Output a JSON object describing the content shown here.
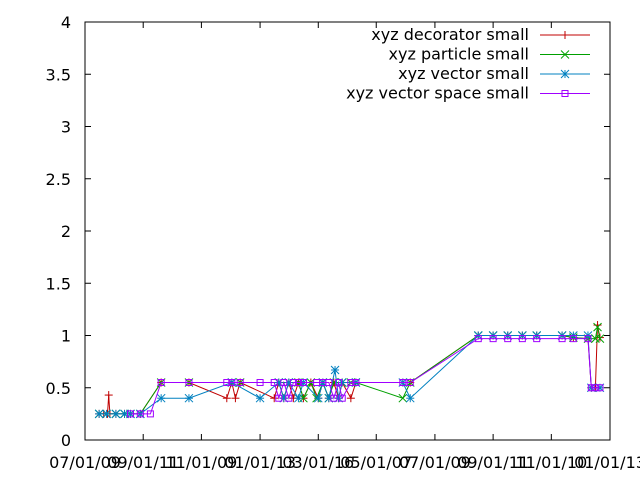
{
  "chart_data": {
    "type": "line",
    "title": "",
    "xlabel": "",
    "ylabel": "",
    "ylim": [
      0,
      4
    ],
    "xlim": [
      "2007-01-01",
      "2013-01-01"
    ],
    "grid": false,
    "legend_position": "top-right",
    "y_ticks": [
      {
        "value": 0,
        "label": "0"
      },
      {
        "value": 0.5,
        "label": "0.5"
      },
      {
        "value": 1,
        "label": "1"
      },
      {
        "value": 1.5,
        "label": "1.5"
      },
      {
        "value": 2,
        "label": "2"
      },
      {
        "value": 2.5,
        "label": "2.5"
      },
      {
        "value": 3,
        "label": "3"
      },
      {
        "value": 3.5,
        "label": "3.5"
      },
      {
        "value": 4,
        "label": "4"
      }
    ],
    "x_ticks": [
      {
        "value": "2007-01-01",
        "label": "07/01/09"
      },
      {
        "value": "2007-09-01",
        "label": "09/01/11"
      },
      {
        "value": "2008-05-01",
        "label": "11/01/09"
      },
      {
        "value": "2009-01-01",
        "label": "01/01/13"
      },
      {
        "value": "2009-09-01",
        "label": "03/01/16"
      },
      {
        "value": "2010-05-01",
        "label": "05/01/07"
      },
      {
        "value": "2011-01-01",
        "label": "07/01/09"
      },
      {
        "value": "2011-09-01",
        "label": "09/01/11"
      },
      {
        "value": "2012-05-01",
        "label": "11/01/10"
      },
      {
        "value": "2013-01-01",
        "label": "01/01/13"
      }
    ],
    "series": [
      {
        "name": "xyz decorator small",
        "color": "#c00000",
        "marker": "plus",
        "points": [
          {
            "x": "2007-03-01",
            "y": 0.25
          },
          {
            "x": "2007-03-20",
            "y": 0.25
          },
          {
            "x": "2007-04-05",
            "y": 0.25
          },
          {
            "x": "2007-04-10",
            "y": 0.43
          },
          {
            "x": "2007-04-15",
            "y": 0.25
          },
          {
            "x": "2007-05-10",
            "y": 0.25
          },
          {
            "x": "2007-06-15",
            "y": 0.25
          },
          {
            "x": "2007-07-10",
            "y": 0.25
          },
          {
            "x": "2007-08-20",
            "y": 0.25
          },
          {
            "x": "2007-11-15",
            "y": 0.55
          },
          {
            "x": "2008-03-10",
            "y": 0.55
          },
          {
            "x": "2008-08-15",
            "y": 0.4
          },
          {
            "x": "2008-09-05",
            "y": 0.55
          },
          {
            "x": "2008-09-20",
            "y": 0.4
          },
          {
            "x": "2008-10-10",
            "y": 0.55
          },
          {
            "x": "2009-03-01",
            "y": 0.4
          },
          {
            "x": "2009-03-20",
            "y": 0.55
          },
          {
            "x": "2009-04-10",
            "y": 0.4
          },
          {
            "x": "2009-05-01",
            "y": 0.55
          },
          {
            "x": "2009-05-20",
            "y": 0.4
          },
          {
            "x": "2009-06-10",
            "y": 0.55
          },
          {
            "x": "2009-07-01",
            "y": 0.4
          },
          {
            "x": "2009-08-01",
            "y": 0.55
          },
          {
            "x": "2009-09-01",
            "y": 0.4
          },
          {
            "x": "2009-09-20",
            "y": 0.55
          },
          {
            "x": "2009-10-15",
            "y": 0.4
          },
          {
            "x": "2009-11-05",
            "y": 0.55
          },
          {
            "x": "2009-11-25",
            "y": 0.4
          },
          {
            "x": "2009-12-10",
            "y": 0.55
          },
          {
            "x": "2010-01-15",
            "y": 0.4
          },
          {
            "x": "2010-02-05",
            "y": 0.55
          },
          {
            "x": "2010-08-20",
            "y": 0.55
          },
          {
            "x": "2010-09-20",
            "y": 0.55
          },
          {
            "x": "2011-07-01",
            "y": 1.0
          },
          {
            "x": "2011-09-01",
            "y": 1.0
          },
          {
            "x": "2011-11-01",
            "y": 1.0
          },
          {
            "x": "2012-01-01",
            "y": 1.0
          },
          {
            "x": "2012-03-01",
            "y": 1.0
          },
          {
            "x": "2012-06-15",
            "y": 1.0
          },
          {
            "x": "2012-08-01",
            "y": 0.98
          },
          {
            "x": "2012-10-01",
            "y": 0.97
          },
          {
            "x": "2012-10-15",
            "y": 0.5
          },
          {
            "x": "2012-11-01",
            "y": 0.5
          },
          {
            "x": "2012-11-10",
            "y": 1.1
          },
          {
            "x": "2012-11-20",
            "y": 0.98
          }
        ]
      },
      {
        "name": "xyz particle small",
        "color": "#00a000",
        "marker": "cross",
        "points": [
          {
            "x": "2007-03-01",
            "y": 0.25
          },
          {
            "x": "2007-04-01",
            "y": 0.25
          },
          {
            "x": "2007-05-10",
            "y": 0.25
          },
          {
            "x": "2007-06-15",
            "y": 0.25
          },
          {
            "x": "2007-07-10",
            "y": 0.25
          },
          {
            "x": "2007-08-20",
            "y": 0.25
          },
          {
            "x": "2007-11-15",
            "y": 0.55
          },
          {
            "x": "2008-03-10",
            "y": 0.55
          },
          {
            "x": "2008-09-05",
            "y": 0.55
          },
          {
            "x": "2008-10-10",
            "y": 0.55
          },
          {
            "x": "2009-03-20",
            "y": 0.55
          },
          {
            "x": "2009-05-01",
            "y": 0.55
          },
          {
            "x": "2009-06-10",
            "y": 0.55
          },
          {
            "x": "2009-07-01",
            "y": 0.4
          },
          {
            "x": "2009-08-01",
            "y": 0.55
          },
          {
            "x": "2009-08-25",
            "y": 0.4
          },
          {
            "x": "2009-09-20",
            "y": 0.55
          },
          {
            "x": "2009-10-15",
            "y": 0.4
          },
          {
            "x": "2009-11-05",
            "y": 0.55
          },
          {
            "x": "2009-12-10",
            "y": 0.55
          },
          {
            "x": "2010-01-15",
            "y": 0.55
          },
          {
            "x": "2010-02-05",
            "y": 0.55
          },
          {
            "x": "2010-08-20",
            "y": 0.4
          },
          {
            "x": "2010-09-20",
            "y": 0.55
          },
          {
            "x": "2011-07-01",
            "y": 1.0
          },
          {
            "x": "2011-09-01",
            "y": 1.0
          },
          {
            "x": "2011-11-01",
            "y": 1.0
          },
          {
            "x": "2012-01-01",
            "y": 1.0
          },
          {
            "x": "2012-03-01",
            "y": 1.0
          },
          {
            "x": "2012-06-15",
            "y": 1.0
          },
          {
            "x": "2012-08-01",
            "y": 0.98
          },
          {
            "x": "2012-10-01",
            "y": 0.97
          },
          {
            "x": "2012-11-01",
            "y": 0.97
          },
          {
            "x": "2012-11-10",
            "y": 1.08
          },
          {
            "x": "2012-11-20",
            "y": 0.97
          }
        ]
      },
      {
        "name": "xyz vector small",
        "color": "#0080c0",
        "marker": "star",
        "points": [
          {
            "x": "2007-03-01",
            "y": 0.25
          },
          {
            "x": "2007-04-01",
            "y": 0.25
          },
          {
            "x": "2007-05-10",
            "y": 0.25
          },
          {
            "x": "2007-06-15",
            "y": 0.25
          },
          {
            "x": "2007-07-10",
            "y": 0.25
          },
          {
            "x": "2007-08-20",
            "y": 0.25
          },
          {
            "x": "2007-11-15",
            "y": 0.4
          },
          {
            "x": "2008-03-10",
            "y": 0.4
          },
          {
            "x": "2008-09-05",
            "y": 0.55
          },
          {
            "x": "2009-01-01",
            "y": 0.4
          },
          {
            "x": "2009-03-20",
            "y": 0.55
          },
          {
            "x": "2009-04-10",
            "y": 0.4
          },
          {
            "x": "2009-05-01",
            "y": 0.55
          },
          {
            "x": "2009-06-10",
            "y": 0.4
          },
          {
            "x": "2009-07-01",
            "y": 0.55
          },
          {
            "x": "2009-09-01",
            "y": 0.4
          },
          {
            "x": "2009-09-20",
            "y": 0.55
          },
          {
            "x": "2009-10-15",
            "y": 0.4
          },
          {
            "x": "2009-11-10",
            "y": 0.67
          },
          {
            "x": "2009-11-25",
            "y": 0.4
          },
          {
            "x": "2009-12-10",
            "y": 0.55
          },
          {
            "x": "2010-02-05",
            "y": 0.55
          },
          {
            "x": "2010-08-20",
            "y": 0.55
          },
          {
            "x": "2010-09-20",
            "y": 0.4
          },
          {
            "x": "2011-07-01",
            "y": 1.0
          },
          {
            "x": "2011-09-01",
            "y": 1.0
          },
          {
            "x": "2011-11-01",
            "y": 1.0
          },
          {
            "x": "2012-01-01",
            "y": 1.0
          },
          {
            "x": "2012-03-01",
            "y": 1.0
          },
          {
            "x": "2012-06-15",
            "y": 1.0
          },
          {
            "x": "2012-08-01",
            "y": 1.0
          },
          {
            "x": "2012-10-01",
            "y": 1.0
          },
          {
            "x": "2012-10-15",
            "y": 0.5
          },
          {
            "x": "2012-11-20",
            "y": 0.5
          }
        ]
      },
      {
        "name": "xyz vector space small",
        "color": "#a000ff",
        "marker": "square",
        "points": [
          {
            "x": "2007-07-10",
            "y": 0.25
          },
          {
            "x": "2007-08-20",
            "y": 0.25
          },
          {
            "x": "2007-10-01",
            "y": 0.25
          },
          {
            "x": "2007-11-15",
            "y": 0.55
          },
          {
            "x": "2008-03-10",
            "y": 0.55
          },
          {
            "x": "2008-08-15",
            "y": 0.55
          },
          {
            "x": "2008-09-05",
            "y": 0.55
          },
          {
            "x": "2008-10-10",
            "y": 0.55
          },
          {
            "x": "2009-01-01",
            "y": 0.55
          },
          {
            "x": "2009-03-01",
            "y": 0.55
          },
          {
            "x": "2009-03-20",
            "y": 0.4
          },
          {
            "x": "2009-04-10",
            "y": 0.55
          },
          {
            "x": "2009-05-01",
            "y": 0.4
          },
          {
            "x": "2009-05-20",
            "y": 0.55
          },
          {
            "x": "2009-06-10",
            "y": 0.55
          },
          {
            "x": "2009-07-01",
            "y": 0.55
          },
          {
            "x": "2009-08-25",
            "y": 0.55
          },
          {
            "x": "2009-09-20",
            "y": 0.55
          },
          {
            "x": "2009-10-15",
            "y": 0.55
          },
          {
            "x": "2009-11-05",
            "y": 0.4
          },
          {
            "x": "2009-11-25",
            "y": 0.55
          },
          {
            "x": "2009-12-10",
            "y": 0.4
          },
          {
            "x": "2010-01-15",
            "y": 0.55
          },
          {
            "x": "2010-02-05",
            "y": 0.55
          },
          {
            "x": "2010-08-20",
            "y": 0.55
          },
          {
            "x": "2010-09-20",
            "y": 0.55
          },
          {
            "x": "2011-07-01",
            "y": 0.97
          },
          {
            "x": "2011-09-01",
            "y": 0.97
          },
          {
            "x": "2011-11-01",
            "y": 0.97
          },
          {
            "x": "2012-01-01",
            "y": 0.97
          },
          {
            "x": "2012-03-01",
            "y": 0.97
          },
          {
            "x": "2012-06-15",
            "y": 0.97
          },
          {
            "x": "2012-08-01",
            "y": 0.97
          },
          {
            "x": "2012-10-01",
            "y": 0.97
          },
          {
            "x": "2012-10-15",
            "y": 0.5
          },
          {
            "x": "2012-11-01",
            "y": 0.5
          },
          {
            "x": "2012-11-20",
            "y": 0.5
          }
        ]
      }
    ]
  }
}
